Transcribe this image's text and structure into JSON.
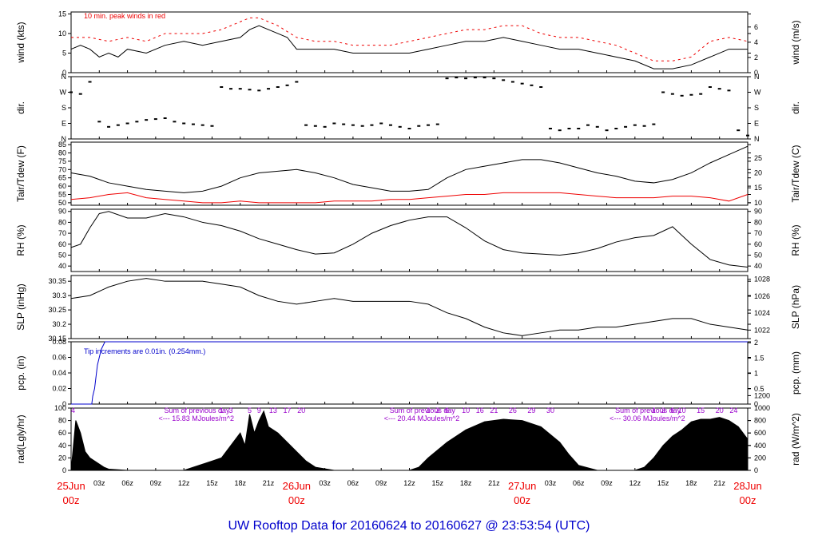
{
  "title": "UW Rooftop Data for 20160624  to  20160627 @ 23:53:54  (UTC)",
  "colors": {
    "ink": "#000000",
    "red": "#ee0000",
    "blue": "#0000cc",
    "purple": "#9900cc",
    "title": "#0000cc"
  },
  "chart_data": [
    {
      "type": "line",
      "ylabel": "wind (kts)",
      "ylabel_right": "wind (m/s)",
      "yticks": [
        0,
        5,
        10,
        15
      ],
      "yticks_right": [
        0,
        2,
        4,
        6
      ],
      "ylim": [
        0,
        15.5
      ],
      "annotation": "10 min. peak winds in red",
      "series": [
        {
          "color": "#000000",
          "x": [
            0,
            1,
            2,
            3,
            4,
            5,
            6,
            8,
            10,
            12,
            14,
            16,
            18,
            19,
            20,
            21,
            22,
            23,
            24,
            26,
            28,
            30,
            32,
            34,
            36,
            38,
            40,
            42,
            44,
            46,
            48,
            50,
            52,
            54,
            56,
            58,
            60,
            62,
            64,
            66,
            68,
            70,
            72
          ],
          "y": [
            6,
            7,
            6,
            4,
            5,
            4,
            6,
            5,
            7,
            8,
            7,
            8,
            9,
            11,
            12,
            11,
            10,
            9,
            6,
            6,
            6,
            5,
            5,
            5,
            5,
            6,
            7,
            8,
            8,
            9,
            8,
            7,
            6,
            6,
            5,
            4,
            3,
            1,
            1,
            2,
            4,
            6,
            6
          ]
        },
        {
          "color": "#ee0000",
          "style": "dash",
          "x": [
            0,
            2,
            4,
            6,
            8,
            10,
            12,
            14,
            16,
            18,
            19,
            20,
            21,
            22,
            24,
            26,
            28,
            30,
            32,
            34,
            36,
            38,
            40,
            42,
            44,
            46,
            48,
            50,
            52,
            54,
            56,
            58,
            60,
            62,
            64,
            66,
            68,
            70,
            72
          ],
          "y": [
            9,
            9,
            8,
            9,
            8,
            10,
            10,
            10,
            11,
            13,
            14,
            14,
            13,
            12,
            9,
            8,
            8,
            7,
            7,
            7,
            8,
            9,
            10,
            11,
            11,
            12,
            12,
            10,
            9,
            9,
            8,
            7,
            5,
            3,
            3,
            4,
            8,
            9,
            8
          ]
        }
      ]
    },
    {
      "type": "scatter",
      "ylabel": "dir.",
      "ylabel_right": "dir.",
      "yticks": [
        "N",
        "W",
        "S",
        "E",
        "N"
      ],
      "x": [
        0,
        1,
        2,
        3,
        4,
        5,
        6,
        7,
        8,
        9,
        10,
        11,
        12,
        13,
        14,
        15,
        16,
        17,
        18,
        19,
        20,
        21,
        22,
        23,
        24,
        25,
        26,
        27,
        28,
        29,
        30,
        31,
        32,
        33,
        34,
        35,
        36,
        37,
        38,
        39,
        40,
        41,
        42,
        43,
        44,
        45,
        46,
        47,
        48,
        49,
        50,
        51,
        52,
        53,
        54,
        55,
        56,
        57,
        58,
        59,
        60,
        61,
        62,
        63,
        64,
        65,
        66,
        67,
        68,
        69,
        70,
        71,
        72
      ],
      "y": [
        270,
        260,
        330,
        100,
        70,
        80,
        90,
        100,
        110,
        115,
        120,
        100,
        90,
        85,
        80,
        75,
        300,
        290,
        290,
        285,
        280,
        290,
        300,
        310,
        330,
        80,
        75,
        70,
        90,
        85,
        80,
        75,
        80,
        90,
        80,
        70,
        60,
        75,
        80,
        85,
        350,
        355,
        350,
        355,
        355,
        350,
        340,
        330,
        320,
        310,
        300,
        60,
        50,
        60,
        60,
        80,
        70,
        50,
        60,
        70,
        80,
        75,
        85,
        270,
        260,
        250,
        255,
        260,
        300,
        290,
        280,
        50,
        20
      ]
    },
    {
      "type": "line",
      "ylabel": "Tair/Tdew (F)",
      "ylabel_right": "Tair/Tdew (C)",
      "yticks": [
        50,
        55,
        60,
        65,
        70,
        75,
        80,
        85
      ],
      "yticks_right": [
        10,
        15,
        20,
        25
      ],
      "ylim": [
        48.5,
        86.5
      ],
      "series": [
        {
          "name": "Tair",
          "color": "#000000",
          "x": [
            0,
            2,
            4,
            6,
            8,
            10,
            12,
            14,
            16,
            18,
            20,
            22,
            24,
            26,
            28,
            30,
            32,
            34,
            36,
            38,
            40,
            42,
            44,
            46,
            48,
            50,
            52,
            54,
            56,
            58,
            60,
            62,
            64,
            66,
            68,
            70,
            72
          ],
          "y": [
            68,
            66,
            62,
            60,
            58,
            57,
            56,
            57,
            60,
            65,
            68,
            69,
            70,
            68,
            65,
            61,
            59,
            57,
            57,
            58,
            65,
            70,
            72,
            74,
            76,
            76,
            74,
            71,
            68,
            66,
            63,
            62,
            64,
            68,
            74,
            79,
            84
          ]
        },
        {
          "name": "Tdew",
          "color": "#ee0000",
          "x": [
            0,
            2,
            4,
            6,
            8,
            10,
            12,
            14,
            16,
            18,
            20,
            22,
            24,
            26,
            28,
            30,
            32,
            34,
            36,
            38,
            40,
            42,
            44,
            46,
            48,
            50,
            52,
            54,
            56,
            58,
            60,
            62,
            64,
            66,
            68,
            70,
            72
          ],
          "y": [
            52,
            53,
            55,
            56,
            53,
            52,
            51,
            50,
            50,
            51,
            50,
            50,
            50,
            50,
            51,
            51,
            51,
            52,
            52,
            53,
            54,
            55,
            55,
            56,
            56,
            56,
            56,
            55,
            54,
            53,
            53,
            53,
            54,
            54,
            53,
            51,
            55
          ]
        }
      ]
    },
    {
      "type": "line",
      "ylabel": "RH (%)",
      "ylabel_right": "RH (%)",
      "yticks": [
        40,
        50,
        60,
        70,
        80,
        90
      ],
      "ylim": [
        35,
        92
      ],
      "series": [
        {
          "color": "#000000",
          "x": [
            0,
            1,
            2,
            3,
            4,
            6,
            8,
            10,
            12,
            14,
            16,
            18,
            20,
            22,
            24,
            26,
            28,
            30,
            32,
            34,
            36,
            38,
            40,
            42,
            44,
            46,
            48,
            50,
            52,
            54,
            56,
            58,
            60,
            62,
            64,
            66,
            68,
            70,
            72
          ],
          "y": [
            57,
            60,
            75,
            88,
            90,
            84,
            84,
            88,
            85,
            80,
            77,
            72,
            65,
            60,
            55,
            51,
            52,
            60,
            70,
            77,
            82,
            85,
            85,
            75,
            63,
            55,
            52,
            51,
            50,
            52,
            56,
            62,
            66,
            68,
            76,
            60,
            46,
            41,
            39
          ]
        }
      ]
    },
    {
      "type": "line",
      "ylabel": "SLP (inHg)",
      "ylabel_right": "SLP (hPa)",
      "yticks": [
        30.15,
        30.2,
        30.25,
        30.3,
        30.35
      ],
      "yticks_right": [
        1022,
        1024,
        1026,
        1028
      ],
      "ylim": [
        30.15,
        30.37
      ],
      "series": [
        {
          "color": "#000000",
          "x": [
            0,
            2,
            4,
            6,
            8,
            10,
            12,
            14,
            16,
            18,
            20,
            22,
            24,
            26,
            28,
            30,
            32,
            34,
            36,
            38,
            40,
            42,
            44,
            46,
            48,
            50,
            52,
            54,
            56,
            58,
            60,
            62,
            64,
            66,
            68,
            70,
            72
          ],
          "y": [
            30.29,
            30.3,
            30.33,
            30.35,
            30.36,
            30.35,
            30.35,
            30.35,
            30.34,
            30.33,
            30.3,
            30.28,
            30.27,
            30.28,
            30.29,
            30.28,
            30.28,
            30.28,
            30.28,
            30.27,
            30.24,
            30.22,
            30.19,
            30.17,
            30.16,
            30.17,
            30.18,
            30.18,
            30.19,
            30.19,
            30.2,
            30.21,
            30.22,
            30.22,
            30.2,
            30.19,
            30.18
          ]
        }
      ]
    },
    {
      "type": "line",
      "ylabel": "pcp. (in)",
      "ylabel_right": "pcp. (mm)",
      "yticks": [
        0,
        0.02,
        0.04,
        0.06,
        0.08
      ],
      "yticks_right": [
        0,
        0.5,
        1,
        1.5,
        2
      ],
      "ylim": [
        0,
        0.08
      ],
      "annotation": "Tip increments are 0.01in. (0.254mm.)",
      "series": [
        {
          "color": "#0000cc",
          "x": [
            0,
            2.2,
            2.3,
            2.5,
            2.6,
            2.8,
            3.0,
            3.2,
            3.6,
            4,
            72
          ],
          "y": [
            0,
            0,
            0.01,
            0.02,
            0.03,
            0.05,
            0.06,
            0.07,
            0.08,
            0.08,
            0.08
          ]
        }
      ]
    },
    {
      "type": "area",
      "ylabel": "rad(Lgly/hr)",
      "ylabel_right": "rad (W/m^2)",
      "yticks": [
        0,
        20,
        40,
        60,
        80,
        100
      ],
      "yticks_right": [
        0,
        200,
        400,
        600,
        800,
        1000,
        1200
      ],
      "ylim": [
        0,
        100
      ],
      "series": [
        {
          "color": "#000000",
          "x": [
            0,
            0.5,
            1,
            1.5,
            2,
            2.5,
            3,
            3.5,
            4,
            6,
            12,
            13,
            14,
            15,
            16,
            17,
            18,
            18.5,
            19,
            19.5,
            20,
            20.5,
            21,
            22,
            23,
            24,
            25,
            26,
            28,
            36,
            37,
            38,
            40,
            42,
            44,
            46,
            48,
            50,
            52,
            53,
            54,
            56,
            60,
            61,
            62,
            63,
            64,
            65,
            66,
            67,
            68,
            69,
            70,
            71,
            72
          ],
          "y": [
            0,
            80,
            60,
            30,
            20,
            15,
            10,
            5,
            2,
            0,
            0,
            5,
            10,
            15,
            20,
            40,
            60,
            40,
            90,
            60,
            80,
            95,
            70,
            60,
            45,
            30,
            15,
            5,
            0,
            0,
            5,
            20,
            45,
            65,
            78,
            82,
            80,
            70,
            45,
            25,
            8,
            0,
            0,
            5,
            20,
            40,
            55,
            65,
            78,
            82,
            82,
            85,
            80,
            70,
            50
          ]
        }
      ],
      "annotations": [
        {
          "x": 0,
          "text": "4"
        },
        {
          "x": 6.5,
          "text": "Sum of previous day"
        },
        {
          "x": 6.5,
          "text": "<--- 15.83 MJoules/m^2"
        },
        {
          "x": 30.5,
          "text": "Sum of previous day"
        },
        {
          "x": 30.5,
          "text": "<--- 20.44 MJoules/m^2"
        },
        {
          "x": 54.5,
          "text": "Sum of previous day"
        },
        {
          "x": 54.5,
          "text": "<--- 30.06 MJoules/m^2"
        }
      ],
      "top_ticks": [
        {
          "x": 16,
          "text": "1"
        },
        {
          "x": 17,
          "text": "3"
        },
        {
          "x": 19,
          "text": "5"
        },
        {
          "x": 20,
          "text": "9"
        },
        {
          "x": 21.5,
          "text": "13"
        },
        {
          "x": 23,
          "text": "17"
        },
        {
          "x": 24.5,
          "text": "20"
        },
        {
          "x": 38,
          "text": "1"
        },
        {
          "x": 39,
          "text": "3"
        },
        {
          "x": 40,
          "text": "6"
        },
        {
          "x": 42,
          "text": "10"
        },
        {
          "x": 43.5,
          "text": "16"
        },
        {
          "x": 45,
          "text": "21"
        },
        {
          "x": 47,
          "text": "26"
        },
        {
          "x": 49,
          "text": "29"
        },
        {
          "x": 51,
          "text": "30"
        },
        {
          "x": 62,
          "text": "1"
        },
        {
          "x": 63,
          "text": "3"
        },
        {
          "x": 64,
          "text": "6"
        },
        {
          "x": 65,
          "text": "10"
        },
        {
          "x": 67,
          "text": "15"
        },
        {
          "x": 69,
          "text": "20"
        },
        {
          "x": 70.5,
          "text": "24"
        }
      ]
    }
  ],
  "time_axis": {
    "ticks": [
      {
        "x": 3,
        "text": "03z"
      },
      {
        "x": 6,
        "text": "06z"
      },
      {
        "x": 9,
        "text": "09z"
      },
      {
        "x": 12,
        "text": "12z"
      },
      {
        "x": 15,
        "text": "15z"
      },
      {
        "x": 18,
        "text": "18z"
      },
      {
        "x": 21,
        "text": "21z"
      },
      {
        "x": 27,
        "text": "03z"
      },
      {
        "x": 30,
        "text": "06z"
      },
      {
        "x": 33,
        "text": "09z"
      },
      {
        "x": 36,
        "text": "12z"
      },
      {
        "x": 39,
        "text": "15z"
      },
      {
        "x": 42,
        "text": "18z"
      },
      {
        "x": 45,
        "text": "21z"
      },
      {
        "x": 51,
        "text": "03z"
      },
      {
        "x": 54,
        "text": "06z"
      },
      {
        "x": 57,
        "text": "09z"
      },
      {
        "x": 60,
        "text": "12z"
      },
      {
        "x": 63,
        "text": "15z"
      },
      {
        "x": 66,
        "text": "18z"
      },
      {
        "x": 69,
        "text": "21z"
      }
    ],
    "days": [
      {
        "x": 0,
        "date": "25Jun",
        "hour": "00z"
      },
      {
        "x": 24,
        "date": "26Jun",
        "hour": "00z"
      },
      {
        "x": 48,
        "date": "27Jun",
        "hour": "00z"
      },
      {
        "x": 72,
        "date": "28Jun",
        "hour": "00z"
      }
    ]
  }
}
